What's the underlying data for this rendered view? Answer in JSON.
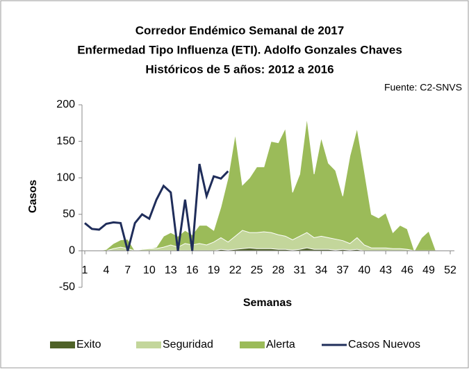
{
  "chart_data": {
    "type": "area-line",
    "title": [
      "Corredor Endémico Semanal de 2017",
      "Enfermedad Tipo Influenza (ETI). Adolfo Gonzales Chaves",
      "Históricos de 5 años: 2012 a 2016"
    ],
    "annotation": "Fuente: C2-SNVS",
    "ylabel": "Casos",
    "xlabel": "Semanas",
    "x": [
      1,
      2,
      3,
      4,
      5,
      6,
      7,
      8,
      9,
      10,
      11,
      12,
      13,
      14,
      15,
      16,
      17,
      18,
      19,
      20,
      21,
      22,
      23,
      24,
      25,
      26,
      27,
      28,
      29,
      30,
      31,
      32,
      33,
      34,
      35,
      36,
      37,
      38,
      39,
      40,
      41,
      42,
      43,
      44,
      45,
      46,
      47,
      48,
      49,
      50,
      51,
      52
    ],
    "xlim": [
      1,
      52
    ],
    "xticks": [
      1,
      4,
      7,
      10,
      13,
      16,
      19,
      22,
      25,
      28,
      31,
      34,
      37,
      40,
      43,
      46,
      49,
      52
    ],
    "ylim": [
      -50,
      200
    ],
    "yticks": [
      -50,
      0,
      50,
      100,
      150,
      200
    ],
    "series": [
      {
        "name": "Exito",
        "color": "#4f6228",
        "kind": "area",
        "values": [
          0,
          0,
          0,
          0,
          0,
          0,
          0,
          0,
          0,
          0,
          0,
          0,
          0,
          0,
          0,
          0,
          0,
          0,
          0,
          2,
          1,
          2,
          3,
          4,
          3,
          3,
          3,
          2,
          2,
          1,
          2,
          4,
          2,
          2,
          2,
          1,
          2,
          1,
          2,
          0,
          0,
          0,
          0,
          0,
          0,
          0,
          0,
          0,
          0,
          0,
          0,
          0
        ]
      },
      {
        "name": "Seguridad",
        "color": "#c3d69b",
        "kind": "area",
        "values": [
          0,
          0,
          0,
          0,
          3,
          5,
          3,
          0,
          2,
          3,
          3,
          5,
          8,
          5,
          10,
          8,
          10,
          8,
          12,
          18,
          12,
          20,
          28,
          25,
          25,
          26,
          25,
          22,
          20,
          15,
          20,
          25,
          18,
          20,
          18,
          16,
          14,
          10,
          18,
          8,
          4,
          4,
          4,
          3,
          3,
          2,
          0,
          0,
          0,
          0,
          0,
          0
        ]
      },
      {
        "name": "Alerta",
        "color": "#9bbb59",
        "kind": "area",
        "values": [
          0,
          0,
          0,
          2,
          10,
          15,
          16,
          0,
          3,
          3,
          5,
          20,
          25,
          20,
          28,
          22,
          35,
          35,
          28,
          60,
          100,
          160,
          90,
          100,
          115,
          115,
          150,
          148,
          168,
          80,
          105,
          182,
          105,
          155,
          120,
          110,
          75,
          130,
          168,
          110,
          50,
          45,
          52,
          25,
          35,
          30,
          0,
          18,
          27,
          0,
          0,
          0
        ]
      },
      {
        "name": "Casos Nuevos",
        "color": "#1f2d5a",
        "kind": "line",
        "values": [
          38,
          30,
          29,
          37,
          39,
          38,
          0,
          38,
          50,
          44,
          70,
          89,
          80,
          0,
          70,
          0,
          119,
          75,
          102,
          99,
          109,
          null,
          null,
          null,
          null,
          null,
          null,
          null,
          null,
          null,
          null,
          null,
          null,
          null,
          null,
          null,
          null,
          null,
          null,
          null,
          null,
          null,
          null,
          null,
          null,
          null,
          null,
          null,
          null,
          null,
          null,
          null
        ]
      }
    ]
  }
}
